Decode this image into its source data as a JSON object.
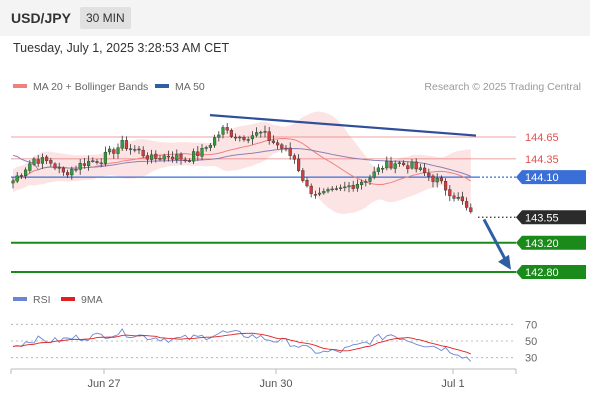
{
  "header": {
    "symbol": "USD/JPY",
    "timeframe": "30 MIN",
    "datetime": "Tuesday, July 1, 2025 3:28:53 AM CET"
  },
  "legend": {
    "bollinger_label": "MA 20 + Bollinger Bands",
    "bollinger_color": "#f08080",
    "ma50_label": "MA 50",
    "ma50_color": "#2e5fa3",
    "source": "Research © 2025 Trading Central"
  },
  "rsi_legend": {
    "rsi_label": "RSI",
    "rsi_color": "#6a85d6",
    "ma_label": "9MA",
    "ma_color": "#e02020"
  },
  "colors": {
    "resistance": "#e05050",
    "pivot": "#3a6fd8",
    "support": "#1a8a1a",
    "trendline": "#2e4f99",
    "arrow": "#2e5fa3",
    "band_fill": "#fde4e4"
  },
  "chart_data": [
    {
      "type": "candlestick",
      "title": "USD/JPY 30 MIN",
      "ylim": [
        142.7,
        145.0
      ],
      "x_ticks": [
        "Jun 27",
        "Jun 30",
        "Jul 1"
      ],
      "current_price": 143.55,
      "levels": [
        {
          "value": 144.65,
          "kind": "resistance",
          "label": "144.65"
        },
        {
          "value": 144.35,
          "kind": "resistance",
          "label": "144.35"
        },
        {
          "value": 144.1,
          "kind": "pivot",
          "label": "144.10"
        },
        {
          "value": 143.55,
          "kind": "last",
          "label": "143.55"
        },
        {
          "value": 143.2,
          "kind": "support",
          "label": "143.20"
        },
        {
          "value": 142.8,
          "kind": "support",
          "label": "142.80"
        }
      ],
      "trendline": {
        "from": 144.95,
        "to": 144.67
      },
      "anchors": [
        [
          0,
          144.05
        ],
        [
          5,
          144.35
        ],
        [
          9,
          144.3
        ],
        [
          12,
          144.15
        ],
        [
          17,
          144.3
        ],
        [
          21,
          144.35
        ],
        [
          26,
          144.55
        ],
        [
          30,
          144.45
        ],
        [
          33,
          144.35
        ],
        [
          37,
          144.4
        ],
        [
          41,
          144.35
        ],
        [
          45,
          144.45
        ],
        [
          50,
          144.75
        ],
        [
          54,
          144.65
        ],
        [
          59,
          144.7
        ],
        [
          64,
          144.5
        ],
        [
          67,
          144.35
        ],
        [
          70,
          143.95
        ],
        [
          73,
          143.85
        ],
        [
          77,
          143.9
        ],
        [
          81,
          144.0
        ],
        [
          85,
          144.1
        ],
        [
          88,
          144.25
        ],
        [
          91,
          144.3
        ],
        [
          95,
          144.25
        ],
        [
          98,
          144.15
        ],
        [
          101,
          144.05
        ],
        [
          104,
          143.9
        ],
        [
          107,
          143.75
        ],
        [
          109,
          143.58
        ]
      ]
    },
    {
      "type": "line",
      "title": "RSI",
      "ylim": [
        20,
        80
      ],
      "y_ticks": [
        70,
        50,
        30
      ],
      "anchors": [
        [
          0,
          44
        ],
        [
          5,
          52
        ],
        [
          10,
          50
        ],
        [
          15,
          54
        ],
        [
          20,
          56
        ],
        [
          26,
          60
        ],
        [
          32,
          55
        ],
        [
          38,
          52
        ],
        [
          44,
          54
        ],
        [
          50,
          60
        ],
        [
          56,
          57
        ],
        [
          61,
          52
        ],
        [
          66,
          48
        ],
        [
          70,
          40
        ],
        [
          74,
          36
        ],
        [
          78,
          38
        ],
        [
          82,
          44
        ],
        [
          86,
          52
        ],
        [
          90,
          58
        ],
        [
          94,
          52
        ],
        [
          98,
          46
        ],
        [
          102,
          42
        ],
        [
          106,
          36
        ],
        [
          109,
          27
        ]
      ]
    }
  ]
}
